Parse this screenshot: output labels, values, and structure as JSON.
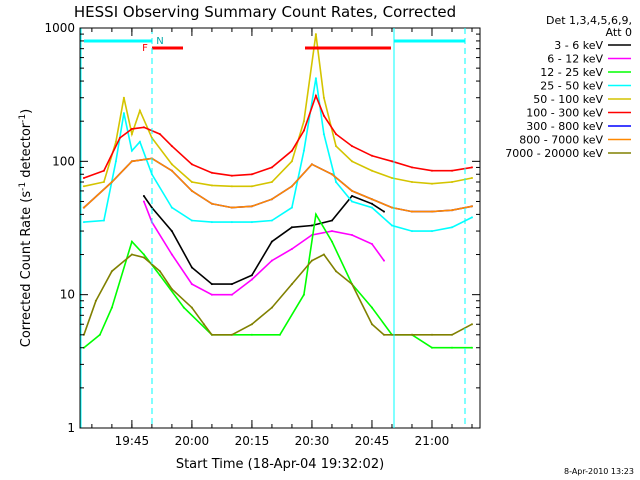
{
  "chart_data": {
    "type": "line",
    "title": "HESSI Observing Summary Count Rates, Corrected",
    "xlabel": "Start Time (18-Apr-04 19:32:02)",
    "ylabel": "Corrected Count Rate (s",
    "ylabel_sup1": "-1",
    "ylabel_mid": " detector",
    "ylabel_sup2": "-1",
    "ylabel_end": ")",
    "y_scale": "log",
    "ylim": [
      1,
      1000
    ],
    "xlim": [
      "19:32:02",
      "21:12:00"
    ],
    "x_ticks": [
      "19:45",
      "20:00",
      "20:15",
      "20:30",
      "20:45",
      "21:00"
    ],
    "y_ticks": [
      "1",
      "10",
      "100",
      "1000"
    ],
    "legend_title": [
      "Det 1,3,4,5,6,9,",
      "Att 0"
    ],
    "legend_position": "right",
    "footer": "8-Apr-2010 13:23",
    "flags": {
      "f_label": "F",
      "n_label": "N"
    },
    "series": [
      {
        "name": "3 - 6 keV",
        "color": "#000000",
        "x": [
          "19:48",
          "19:50",
          "19:55",
          "20:00",
          "20:05",
          "20:10",
          "20:15",
          "20:20",
          "20:25",
          "20:30",
          "20:35",
          "20:40",
          "20:45",
          "20:48"
        ],
        "y": [
          55,
          45,
          30,
          16,
          12,
          12,
          14,
          25,
          32,
          33,
          36,
          55,
          48,
          42
        ]
      },
      {
        "name": "6 - 12 keV",
        "color": "#ff00ff",
        "x": [
          "19:48",
          "19:50",
          "19:55",
          "20:00",
          "20:05",
          "20:10",
          "20:15",
          "20:20",
          "20:25",
          "20:30",
          "20:35",
          "20:40",
          "20:45",
          "20:48"
        ],
        "y": [
          50,
          35,
          20,
          12,
          10,
          10,
          13,
          18,
          22,
          28,
          30,
          28,
          24,
          18
        ]
      },
      {
        "name": "12 - 25 keV",
        "color": "#00ff00",
        "x": [
          "19:33",
          "19:37",
          "19:40",
          "19:45",
          "19:48",
          "19:52",
          "19:58",
          "20:05",
          "20:15",
          "20:22",
          "20:28",
          "20:31",
          "20:35",
          "20:40",
          "20:45",
          "20:50",
          "20:55",
          "21:00",
          "21:05",
          "21:10"
        ],
        "y": [
          4,
          5,
          8,
          25,
          20,
          14,
          8,
          5,
          5,
          5,
          10,
          40,
          25,
          12,
          8,
          5,
          5,
          4,
          4,
          4
        ]
      },
      {
        "name": "25 - 50 keV",
        "color": "#00ffff",
        "x": [
          "19:33",
          "19:38",
          "19:41",
          "19:43",
          "19:45",
          "19:47",
          "19:50",
          "19:55",
          "20:00",
          "20:05",
          "20:10",
          "20:15",
          "20:20",
          "20:25",
          "20:28",
          "20:31",
          "20:33",
          "20:36",
          "20:40",
          "20:45",
          "20:50",
          "20:55",
          "21:00",
          "21:05",
          "21:10"
        ],
        "y": [
          35,
          36,
          100,
          230,
          120,
          140,
          80,
          45,
          36,
          35,
          35,
          35,
          36,
          45,
          120,
          420,
          160,
          70,
          50,
          45,
          33,
          30,
          30,
          32,
          38
        ]
      },
      {
        "name": "50 - 100 keV",
        "color": "#d4c400",
        "x": [
          "19:33",
          "19:38",
          "19:41",
          "19:43",
          "19:45",
          "19:47",
          "19:50",
          "19:55",
          "20:00",
          "20:05",
          "20:10",
          "20:15",
          "20:20",
          "20:25",
          "20:28",
          "20:31",
          "20:33",
          "20:36",
          "20:40",
          "20:45",
          "20:50",
          "20:55",
          "21:00",
          "21:05",
          "21:10"
        ],
        "y": [
          65,
          70,
          140,
          300,
          160,
          240,
          150,
          95,
          70,
          66,
          65,
          65,
          70,
          100,
          200,
          900,
          300,
          130,
          100,
          85,
          75,
          70,
          68,
          70,
          75
        ]
      },
      {
        "name": "100 - 300 keV",
        "color": "#ff0000",
        "x": [
          "19:33",
          "19:38",
          "19:42",
          "19:45",
          "19:48",
          "19:52",
          "19:55",
          "20:00",
          "20:05",
          "20:10",
          "20:15",
          "20:20",
          "20:25",
          "20:28",
          "20:31",
          "20:33",
          "20:36",
          "20:40",
          "20:45",
          "20:50",
          "20:55",
          "21:00",
          "21:05",
          "21:10"
        ],
        "y": [
          75,
          85,
          150,
          175,
          180,
          160,
          130,
          95,
          82,
          78,
          80,
          90,
          120,
          170,
          310,
          220,
          160,
          130,
          110,
          100,
          90,
          85,
          85,
          90
        ]
      },
      {
        "name": "300 - 800 keV",
        "color": "#0000ff",
        "x": [
          "19:33",
          "19:40",
          "19:45",
          "19:50",
          "19:55",
          "20:00",
          "20:05",
          "20:10",
          "20:15",
          "20:20",
          "20:25",
          "20:30",
          "20:35",
          "20:40",
          "20:45",
          "20:50",
          "20:55",
          "21:00",
          "21:05",
          "21:10"
        ],
        "y": [
          45,
          70,
          100,
          105,
          85,
          60,
          48,
          45,
          46,
          52,
          65,
          95,
          80,
          60,
          52,
          45,
          42,
          42,
          43,
          46
        ]
      },
      {
        "name": "800 - 7000 keV",
        "color": "#ff8800",
        "x": [
          "19:33",
          "19:40",
          "19:45",
          "19:50",
          "19:55",
          "20:00",
          "20:05",
          "20:10",
          "20:15",
          "20:20",
          "20:25",
          "20:30",
          "20:35",
          "20:40",
          "20:45",
          "20:50",
          "20:55",
          "21:00",
          "21:05",
          "21:10"
        ],
        "y": [
          45,
          70,
          100,
          105,
          85,
          60,
          48,
          45,
          46,
          52,
          65,
          95,
          80,
          60,
          52,
          45,
          42,
          42,
          43,
          46
        ]
      },
      {
        "name": "7000 - 20000 keV",
        "color": "#808000",
        "x": [
          "19:33",
          "19:36",
          "19:40",
          "19:45",
          "19:48",
          "19:52",
          "19:55",
          "20:00",
          "20:03",
          "20:05",
          "20:10",
          "20:15",
          "20:20",
          "20:25",
          "20:30",
          "20:33",
          "20:36",
          "20:40",
          "20:45",
          "20:48",
          "20:55",
          "21:00",
          "21:05",
          "21:10"
        ],
        "y": [
          5,
          9,
          15,
          20,
          19,
          15,
          11,
          8,
          6,
          5,
          5,
          6,
          8,
          12,
          18,
          20,
          15,
          12,
          6,
          5,
          5,
          5,
          5,
          6
        ]
      }
    ]
  }
}
